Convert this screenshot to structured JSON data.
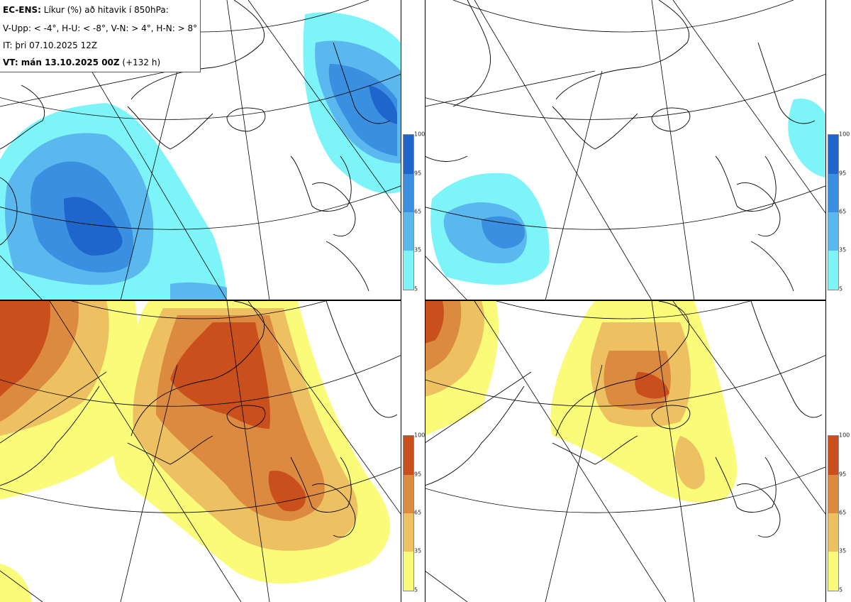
{
  "header": {
    "product": "EC-ENS:",
    "title_rest": " Líkur (%) að hitavik í 850hPa:",
    "thresholds": "V-Upp: < -4°, H-U: < -8°, V-N: > 4°, H-N: > 8°",
    "init_time": "IT: þri 07.10.2025 12Z",
    "valid_label": "VT: mán 13.10.2025 00Z",
    "lead_time": " (+132 h)"
  },
  "panels": [
    {
      "id": "V-Upp",
      "description": "Probability anomaly < -4°",
      "palette": "blue"
    },
    {
      "id": "H-U",
      "description": "Probability anomaly < -8°",
      "palette": "blue"
    },
    {
      "id": "V-N",
      "description": "Probability anomaly > 4°",
      "palette": "warm"
    },
    {
      "id": "H-N",
      "description": "Probability anomaly > 8°",
      "palette": "warm"
    }
  ],
  "colorbars": {
    "blue": {
      "ticks": [
        "100",
        "95",
        "65",
        "35",
        "5"
      ],
      "colors": [
        "#1f66cc",
        "#3b8fe0",
        "#5ab8ee",
        "#7df4f8"
      ]
    },
    "warm": {
      "ticks": [
        "100",
        "95",
        "65",
        "35",
        "5"
      ],
      "colors": [
        "#c9501c",
        "#dc8a40",
        "#edc061",
        "#fbfb7a"
      ]
    }
  },
  "legend_colors": {
    "blue_levels": [
      "#7df4f8",
      "#5ab8ee",
      "#3b8fe0",
      "#1f66cc"
    ],
    "warm_levels": [
      "#fbfb7a",
      "#edc061",
      "#dc8a40",
      "#c9501c"
    ]
  }
}
